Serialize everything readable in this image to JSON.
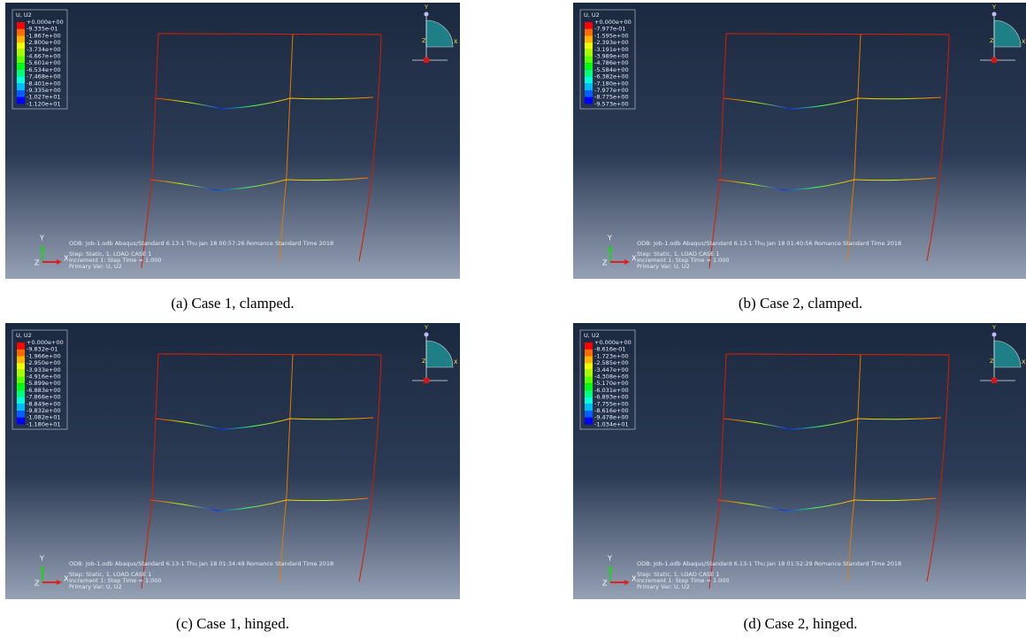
{
  "panels": [
    {
      "legend_title": "U, U2",
      "legend_values": [
        "+0.000e+00",
        "-9.335e-01",
        "-1.867e+00",
        "-2.800e+00",
        "-3.734e+00",
        "-4.667e+00",
        "-5.601e+00",
        "-6.534e+00",
        "-7.468e+00",
        "-8.401e+00",
        "-9.335e+00",
        "-1.027e+01",
        "-1.120e+01"
      ],
      "odb_line": "ODB: Job-1.odb    Abaqus/Standard 6.13-1    Thu Jan 18 00:57:26 Romance Standard Time 2018",
      "step_line": "Step: Static, 1, LOAD CASE 1",
      "increment_line": "Increment     1: Step Time =    1.000",
      "primary_var": "Primary Var: U, U2",
      "axes": {
        "x": "X",
        "y": "Y",
        "z": "Z"
      },
      "caption": "(a) Case 1, clamped."
    },
    {
      "legend_title": "U, U2",
      "legend_values": [
        "+0.000e+00",
        "-7.977e-01",
        "-1.595e+00",
        "-2.393e+00",
        "-3.191e+00",
        "-3.989e+00",
        "-4.786e+00",
        "-5.584e+00",
        "-6.382e+00",
        "-7.180e+00",
        "-7.977e+00",
        "-8.775e+00",
        "-9.573e+00"
      ],
      "odb_line": "ODB: Job-1.odb    Abaqus/Standard 6.13-1    Thu Jan 18 01:40:56 Romance Standard Time 2018",
      "step_line": "Step: Static, 1, LOAD CASE 1",
      "increment_line": "Increment     1: Step Time =    1.000",
      "primary_var": "Primary Var: U, U2",
      "axes": {
        "x": "X",
        "y": "Y",
        "z": "Z"
      },
      "caption": "(b) Case 2, clamped."
    },
    {
      "legend_title": "U, U2",
      "legend_values": [
        "+0.000e+00",
        "-9.832e-01",
        "-1.966e+00",
        "-2.950e+00",
        "-3.933e+00",
        "-4.916e+00",
        "-5.899e+00",
        "-6.883e+00",
        "-7.866e+00",
        "-8.849e+00",
        "-9.832e+00",
        "-1.082e+01",
        "-1.180e+01"
      ],
      "odb_line": "ODB: Job-1.odb    Abaqus/Standard 6.13-1    Thu Jan 18 01:34:49 Romance Standard Time 2018",
      "step_line": "Step: Static, 1, LOAD CASE 1",
      "increment_line": "Increment     1: Step Time =    1.000",
      "primary_var": "Primary Var: U, U2",
      "axes": {
        "x": "X",
        "y": "Y",
        "z": "Z"
      },
      "caption": "(c) Case 1, hinged."
    },
    {
      "legend_title": "U, U2",
      "legend_values": [
        "+0.000e+00",
        "-8.616e-01",
        "-1.723e+00",
        "-2.585e+00",
        "-3.447e+00",
        "-4.308e+00",
        "-5.170e+00",
        "-6.031e+00",
        "-6.893e+00",
        "-7.755e+00",
        "-8.616e+00",
        "-9.478e+00",
        "-1.034e+01"
      ],
      "odb_line": "ODB: Job-1.odb    Abaqus/Standard 6.13-1    Thu Jan 18 01:52:29 Romance Standard Time 2018",
      "step_line": "Step: Static, 1, LOAD CASE 1",
      "increment_line": "Increment     1: Step Time =    1.000",
      "primary_var": "Primary Var: U, U2",
      "axes": {
        "x": "X",
        "y": "Y",
        "z": "Z"
      },
      "caption": "(d) Case 2, hinged."
    }
  ]
}
